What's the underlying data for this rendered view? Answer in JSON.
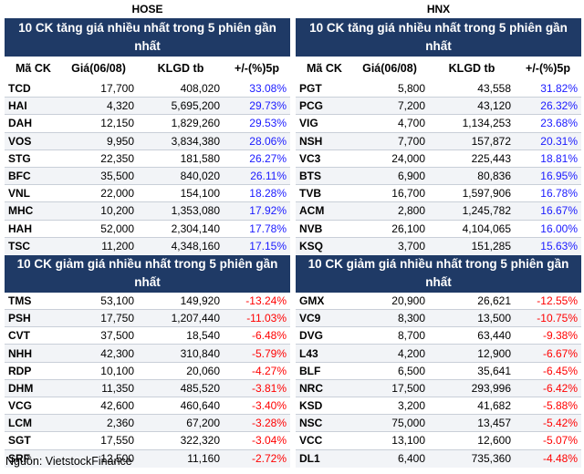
{
  "hose": {
    "title": "HOSE",
    "gainers_title": "10 CK tăng giá nhiều nhất trong 5 phiên gần nhất",
    "losers_title": "10 CK giảm giá nhiều nhất trong 5 phiên gần nhất",
    "gainers": [
      {
        "code": "TCD",
        "price": "17,700",
        "vol": "408,020",
        "pct": "33.08%"
      },
      {
        "code": "HAI",
        "price": "4,320",
        "vol": "5,695,200",
        "pct": "29.73%"
      },
      {
        "code": "DAH",
        "price": "12,150",
        "vol": "1,829,260",
        "pct": "29.53%"
      },
      {
        "code": "VOS",
        "price": "9,950",
        "vol": "3,834,380",
        "pct": "28.06%"
      },
      {
        "code": "STG",
        "price": "22,350",
        "vol": "181,580",
        "pct": "26.27%"
      },
      {
        "code": "BFC",
        "price": "35,500",
        "vol": "840,020",
        "pct": "26.11%"
      },
      {
        "code": "VNL",
        "price": "22,000",
        "vol": "154,100",
        "pct": "18.28%"
      },
      {
        "code": "MHC",
        "price": "10,200",
        "vol": "1,353,080",
        "pct": "17.92%"
      },
      {
        "code": "HAH",
        "price": "52,000",
        "vol": "2,304,140",
        "pct": "17.78%"
      },
      {
        "code": "TSC",
        "price": "11,200",
        "vol": "4,348,160",
        "pct": "17.15%"
      }
    ],
    "losers": [
      {
        "code": "TMS",
        "price": "53,100",
        "vol": "149,920",
        "pct": "-13.24%"
      },
      {
        "code": "PSH",
        "price": "17,750",
        "vol": "1,207,440",
        "pct": "-11.03%"
      },
      {
        "code": "CVT",
        "price": "37,500",
        "vol": "18,540",
        "pct": "-6.48%"
      },
      {
        "code": "NHH",
        "price": "42,300",
        "vol": "310,840",
        "pct": "-5.79%"
      },
      {
        "code": "RDP",
        "price": "10,100",
        "vol": "20,060",
        "pct": "-4.27%"
      },
      {
        "code": "DHM",
        "price": "11,350",
        "vol": "485,520",
        "pct": "-3.81%"
      },
      {
        "code": "VCG",
        "price": "42,600",
        "vol": "460,640",
        "pct": "-3.40%"
      },
      {
        "code": "LCM",
        "price": "2,360",
        "vol": "67,200",
        "pct": "-3.28%"
      },
      {
        "code": "SGT",
        "price": "17,550",
        "vol": "322,320",
        "pct": "-3.04%"
      },
      {
        "code": "SRF",
        "price": "12,500",
        "vol": "11,160",
        "pct": "-2.72%"
      }
    ]
  },
  "hnx": {
    "title": "HNX",
    "gainers_title": "10 CK tăng giá nhiều nhất trong 5 phiên gần nhất",
    "losers_title": "10 CK giảm giá nhiều nhất trong 5 phiên gần nhất",
    "gainers": [
      {
        "code": "PGT",
        "price": "5,800",
        "vol": "43,558",
        "pct": "31.82%"
      },
      {
        "code": "PCG",
        "price": "7,200",
        "vol": "43,120",
        "pct": "26.32%"
      },
      {
        "code": "VIG",
        "price": "4,700",
        "vol": "1,134,253",
        "pct": "23.68%"
      },
      {
        "code": "NSH",
        "price": "7,700",
        "vol": "157,872",
        "pct": "20.31%"
      },
      {
        "code": "VC3",
        "price": "24,000",
        "vol": "225,443",
        "pct": "18.81%"
      },
      {
        "code": "BTS",
        "price": "6,900",
        "vol": "80,836",
        "pct": "16.95%"
      },
      {
        "code": "TVB",
        "price": "16,700",
        "vol": "1,597,906",
        "pct": "16.78%"
      },
      {
        "code": "ACM",
        "price": "2,800",
        "vol": "1,245,782",
        "pct": "16.67%"
      },
      {
        "code": "NVB",
        "price": "26,100",
        "vol": "4,104,065",
        "pct": "16.00%"
      },
      {
        "code": "KSQ",
        "price": "3,700",
        "vol": "151,285",
        "pct": "15.63%"
      }
    ],
    "losers": [
      {
        "code": "GMX",
        "price": "20,900",
        "vol": "26,621",
        "pct": "-12.55%"
      },
      {
        "code": "VC9",
        "price": "8,300",
        "vol": "13,500",
        "pct": "-10.75%"
      },
      {
        "code": "DVG",
        "price": "8,700",
        "vol": "63,440",
        "pct": "-9.38%"
      },
      {
        "code": "L43",
        "price": "4,200",
        "vol": "12,900",
        "pct": "-6.67%"
      },
      {
        "code": "BLF",
        "price": "6,500",
        "vol": "35,641",
        "pct": "-6.45%"
      },
      {
        "code": "NRC",
        "price": "17,500",
        "vol": "293,996",
        "pct": "-6.42%"
      },
      {
        "code": "KSD",
        "price": "3,200",
        "vol": "41,682",
        "pct": "-5.88%"
      },
      {
        "code": "NSC",
        "price": "75,000",
        "vol": "13,457",
        "pct": "-5.42%"
      },
      {
        "code": "VCC",
        "price": "13,100",
        "vol": "12,600",
        "pct": "-5.07%"
      },
      {
        "code": "DL1",
        "price": "6,400",
        "vol": "735,360",
        "pct": "-4.48%"
      }
    ]
  },
  "columns": {
    "code": "Mã CK",
    "price": "Giá(06/08)",
    "vol": "KLGD tb",
    "pct": "+/-(%)5p"
  },
  "source": "Nguồn: VietstockFinance",
  "colors": {
    "banner": "#1f3a66",
    "up": "#1a1aff",
    "down": "#ff0000"
  }
}
